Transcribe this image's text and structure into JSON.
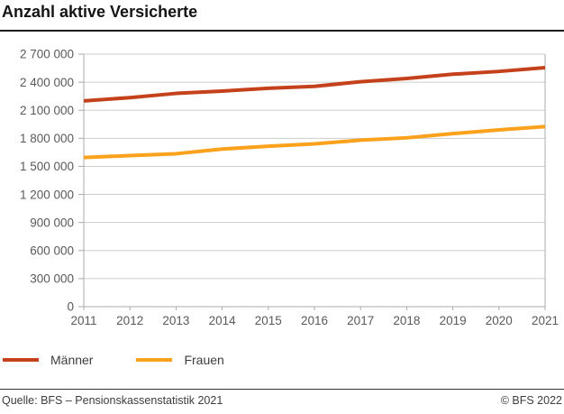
{
  "header": {
    "title": "Anzahl aktive Versicherte"
  },
  "chart_data": {
    "type": "line",
    "title": "Anzahl aktive Versicherte",
    "x": [
      2011,
      2012,
      2013,
      2014,
      2015,
      2016,
      2017,
      2018,
      2019,
      2020,
      2021
    ],
    "series": [
      {
        "name": "Männer",
        "color": "#C5411B",
        "values": [
          2200000,
          2235000,
          2280000,
          2305000,
          2335000,
          2355000,
          2405000,
          2440000,
          2485000,
          2515000,
          2555000
        ]
      },
      {
        "name": "Frauen",
        "color": "#FBA11B",
        "values": [
          1595000,
          1615000,
          1635000,
          1685000,
          1715000,
          1740000,
          1780000,
          1805000,
          1850000,
          1890000,
          1925000
        ]
      }
    ],
    "ylim": [
      0,
      2700000
    ],
    "ytick_step": 300000,
    "ytick_labels": [
      "0",
      "300 000",
      "600 000",
      "900 000",
      "1 200 000",
      "1 500 000",
      "1 800 000",
      "2 100 000",
      "2 400 000",
      "2 700 000"
    ],
    "grid": "horizontal",
    "legend_position": "bottom-left",
    "line_width": 4,
    "grid_color": "#cdcdcd",
    "axis_color": "#ababab",
    "tick_label_color": "#595959"
  },
  "legend": {
    "items": [
      {
        "label": "Männer"
      },
      {
        "label": "Frauen"
      }
    ]
  },
  "footer": {
    "source": "Quelle: BFS – Pensionskassenstatistik 2021",
    "copyright": "© BFS 2022"
  }
}
